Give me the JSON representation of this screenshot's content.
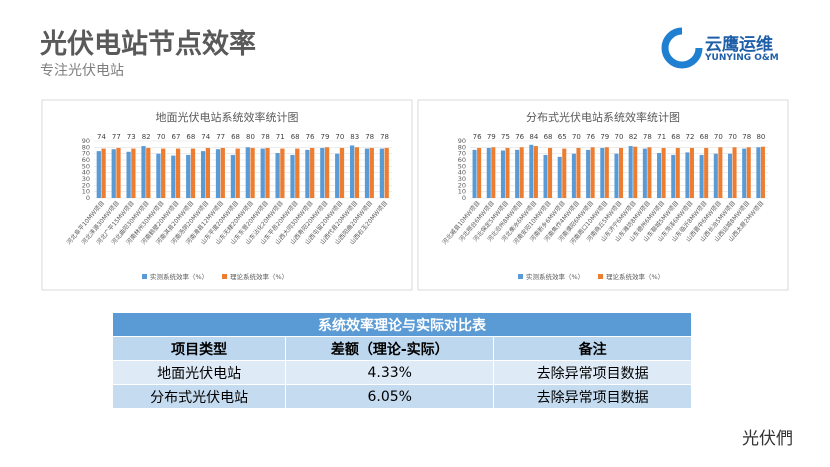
{
  "header": {
    "title": "光伏电站节点效率",
    "subtitle": "专注光伏电站",
    "logo_name": "云鹰运维",
    "logo_sub": "YUNYING O&M"
  },
  "chart_data": [
    {
      "type": "bar",
      "title": "地面光伏电站系统效率统计图",
      "categories": [
        "河北阜平10MW项目",
        "河北涞源30MW项目",
        "河北广平15MW项目",
        "河北曲阳30MW项目",
        "河南林州30MW项目",
        "河南鹤壁20MW项目",
        "河南淇县20MW项目",
        "河南汤阴20MW项目",
        "河南滑县12MW项目",
        "山东平度20MW项目",
        "山东无棣20MW项目",
        "山东东营20MW项目",
        "山东沾化20MW项目",
        "山东平邑20MW项目",
        "山西大同30MW项目",
        "山西寿阳20MW项目",
        "山西屯留20MW项目",
        "山西代县20MW项目",
        "山西阳曲20MW项目",
        "山西右玉20MW项目"
      ],
      "series": [
        {
          "name": "实测系统效率（%）",
          "color": "#5b9bd5",
          "values": [
            74,
            77,
            73,
            82,
            70,
            67,
            68,
            74,
            77,
            68,
            80,
            78,
            71,
            68,
            76,
            79,
            70,
            83,
            78,
            78
          ]
        },
        {
          "name": "理论系统效率（%）",
          "color": "#ed7d31",
          "values": [
            78,
            79,
            78,
            79,
            78,
            78,
            78,
            79,
            79,
            78,
            79,
            79,
            78,
            78,
            79,
            80,
            79,
            80,
            79,
            79
          ]
        }
      ],
      "ylim": [
        0,
        90
      ],
      "yticks": [
        0,
        10,
        20,
        30,
        40,
        50,
        60,
        70,
        80,
        90
      ],
      "legend": "bottom"
    },
    {
      "type": "bar",
      "title": "分布式光伏电站系统效率统计图",
      "categories": [
        "河北威县10MW项目",
        "河北邢台6MW项目",
        "河北保定5MW项目",
        "河北沧州8MW项目",
        "河北衡水6MW项目",
        "河南安阳10MW项目",
        "河南新乡6MW项目",
        "河南焦作4MW项目",
        "河南濮阳6MW项目",
        "河南周口10MW项目",
        "河南商丘5MW项目",
        "山东济宁6MW项目",
        "山东潍坊8MW项目",
        "山东德州6MW项目",
        "山东聊城5MW项目",
        "山东菏泽6MW项目",
        "山东临沂8MW项目",
        "山西晋中6MW项目",
        "山西长治5MW项目",
        "山西运城8MW项目",
        "山西太原2MW项目"
      ],
      "series": [
        {
          "name": "实测系统效率（%）",
          "color": "#5b9bd5",
          "values": [
            76,
            79,
            75,
            76,
            84,
            68,
            65,
            70,
            76,
            79,
            70,
            82,
            78,
            71,
            68,
            72,
            68,
            70,
            70,
            78,
            80
          ]
        },
        {
          "name": "理论系统效率（%）",
          "color": "#ed7d31",
          "values": [
            79,
            80,
            79,
            80,
            82,
            79,
            78,
            79,
            80,
            80,
            79,
            81,
            80,
            79,
            79,
            79,
            79,
            80,
            80,
            80,
            81
          ]
        }
      ],
      "ylim": [
        0,
        90
      ],
      "yticks": [
        0,
        10,
        20,
        30,
        40,
        50,
        60,
        70,
        80,
        90
      ],
      "legend": "bottom"
    }
  ],
  "table": {
    "title": "系统效率理论与实际对比表",
    "headers": [
      "项目类型",
      "差额（理论-实际）",
      "备注"
    ],
    "rows": [
      [
        "地面光伏电站",
        "4.33%",
        "去除异常项目数据"
      ],
      [
        "分布式光伏电站",
        "6.05%",
        "去除异常项目数据"
      ]
    ]
  },
  "footer": {
    "watermark": "光伏們"
  }
}
